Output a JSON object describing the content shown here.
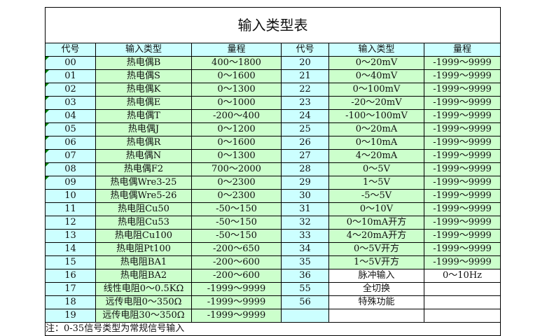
{
  "title": "输入类型表",
  "headers": [
    "代号",
    "输入类型",
    "量程",
    "代号",
    "输入类型",
    "量程"
  ],
  "rows": [
    {
      "l": [
        "00",
        "热电偶B",
        "400～1800"
      ],
      "r": [
        "20",
        "0～20mV",
        "-1999～9999"
      ]
    },
    {
      "l": [
        "01",
        "热电偶S",
        "0～1600"
      ],
      "r": [
        "21",
        "0～40mV",
        "-1999～9999"
      ]
    },
    {
      "l": [
        "02",
        "热电偶K",
        "0～1300"
      ],
      "r": [
        "22",
        "0～100mV",
        "-1999～9999"
      ]
    },
    {
      "l": [
        "03",
        "热电偶E",
        "0～1000"
      ],
      "r": [
        "23",
        "-20～20mV",
        "-1999～9999"
      ]
    },
    {
      "l": [
        "04",
        "热电偶T",
        "-200～400"
      ],
      "r": [
        "24",
        "-100～100mV",
        "-1999～9999"
      ]
    },
    {
      "l": [
        "05",
        "热电偶J",
        "0～1200"
      ],
      "r": [
        "25",
        "0～20mA",
        "-1999～9999"
      ]
    },
    {
      "l": [
        "06",
        "热电偶R",
        "0～1600"
      ],
      "r": [
        "26",
        "0～10mA",
        "-1999～9999"
      ]
    },
    {
      "l": [
        "07",
        "热电偶N",
        "0～1300"
      ],
      "r": [
        "27",
        "4～20mA",
        "-1999～9999"
      ]
    },
    {
      "l": [
        "08",
        "热电偶F2",
        "700～2000"
      ],
      "r": [
        "28",
        "0～5V",
        "-1999～9999"
      ]
    },
    {
      "l": [
        "09",
        "热电偶Wre3-25",
        "0～2300"
      ],
      "r": [
        "29",
        "1～5V",
        "-1999～9999"
      ]
    },
    {
      "l": [
        "10",
        "热电偶Wre5-26",
        "0～2300"
      ],
      "r": [
        "30",
        "-5～5V",
        "-1999～9999"
      ]
    },
    {
      "l": [
        "11",
        "热电阻Cu50",
        "-50～150"
      ],
      "r": [
        "31",
        "0～10V",
        "-1999～9999"
      ]
    },
    {
      "l": [
        "12",
        "热电阻Cu53",
        "-50～150"
      ],
      "r": [
        "32",
        "0～10mA开方",
        "-1999～9999"
      ]
    },
    {
      "l": [
        "13",
        "热电阻Cu100",
        "-50～150"
      ],
      "r": [
        "33",
        "4～20mA开方",
        "-1999～9999"
      ]
    },
    {
      "l": [
        "14",
        "热电阻Pt100",
        "-200～650"
      ],
      "r": [
        "34",
        "0～5V开方",
        "-1999～9999"
      ]
    },
    {
      "l": [
        "15",
        "热电阻BA1",
        "-200～600"
      ],
      "r": [
        "35",
        "1～5V开方",
        "-1999～9999"
      ]
    },
    {
      "l": [
        "16",
        "热电阻BA2",
        "-200～600"
      ],
      "r": [
        "36",
        "脉冲输入",
        "0～10Hz"
      ]
    },
    {
      "l": [
        "17",
        "线性电阻0～0.5KΩ",
        "-1999～9999"
      ],
      "r": [
        "55",
        "全切换",
        ""
      ]
    },
    {
      "l": [
        "18",
        "远传电阻0～350Ω",
        "-1999～9999"
      ],
      "r": [
        "56",
        "特殊功能",
        ""
      ]
    },
    {
      "l": [
        "19",
        "远传电阻30～350Ω",
        "-1999～9999"
      ],
      "r": [
        "",
        "",
        ""
      ]
    }
  ],
  "note": "注：0-35信号类型为常规信号输入",
  "colors": {
    "header": "#ccffff",
    "code": "#ccffff",
    "data": "#ccffcc"
  }
}
